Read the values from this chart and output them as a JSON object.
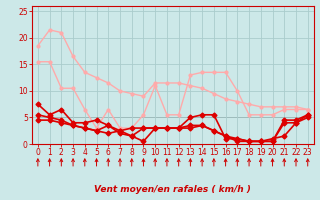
{
  "x": [
    0,
    1,
    2,
    3,
    4,
    5,
    6,
    7,
    8,
    9,
    10,
    11,
    12,
    13,
    14,
    15,
    16,
    17,
    18,
    19,
    20,
    21,
    22,
    23
  ],
  "series": [
    {
      "name": "light_line1",
      "y": [
        18.5,
        21.5,
        21.0,
        16.5,
        13.5,
        12.5,
        11.5,
        10.0,
        9.5,
        9.0,
        11.5,
        11.5,
        11.5,
        11.0,
        10.5,
        9.5,
        8.5,
        8.0,
        7.5,
        7.0,
        7.0,
        7.0,
        7.0,
        6.5
      ],
      "color": "#ffaaaa",
      "lw": 1.0,
      "marker": "o",
      "ms": 2.0,
      "zorder": 2
    },
    {
      "name": "light_line2",
      "y": [
        15.5,
        15.5,
        10.5,
        10.5,
        6.5,
        3.0,
        6.5,
        3.0,
        3.0,
        5.5,
        11.0,
        5.5,
        5.5,
        13.0,
        13.5,
        13.5,
        13.5,
        10.0,
        5.5,
        5.5,
        5.5,
        6.5,
        6.5,
        6.5
      ],
      "color": "#ffaaaa",
      "lw": 1.0,
      "marker": "o",
      "ms": 2.0,
      "zorder": 2
    },
    {
      "name": "red_line1",
      "y": [
        7.5,
        5.5,
        6.5,
        4.0,
        4.0,
        4.5,
        3.5,
        2.5,
        1.5,
        0.5,
        3.0,
        3.0,
        3.0,
        5.0,
        5.5,
        5.5,
        1.0,
        1.0,
        0.5,
        0.5,
        0.5,
        4.5,
        4.5,
        5.5
      ],
      "color": "#dd0000",
      "lw": 1.2,
      "marker": "D",
      "ms": 2.5,
      "zorder": 4
    },
    {
      "name": "red_line2",
      "y": [
        5.5,
        5.0,
        4.5,
        3.5,
        3.0,
        2.5,
        2.0,
        2.5,
        3.0,
        3.0,
        3.0,
        3.0,
        3.0,
        3.5,
        3.5,
        2.5,
        1.5,
        1.0,
        0.5,
        0.5,
        1.0,
        1.5,
        4.0,
        5.0
      ],
      "color": "#dd0000",
      "lw": 1.2,
      "marker": "D",
      "ms": 2.5,
      "zorder": 4
    },
    {
      "name": "red_line3",
      "y": [
        4.5,
        4.5,
        4.0,
        3.5,
        3.0,
        2.5,
        3.5,
        2.0,
        1.5,
        3.0,
        3.0,
        3.0,
        3.0,
        3.0,
        3.5,
        2.5,
        1.5,
        0.5,
        0.5,
        0.5,
        0.5,
        4.0,
        4.0,
        5.5
      ],
      "color": "#dd0000",
      "lw": 1.2,
      "marker": "D",
      "ms": 2.5,
      "zorder": 4
    },
    {
      "name": "mean_line",
      "y": [
        5.0,
        5.0,
        5.0,
        5.0,
        5.0,
        5.0,
        5.0,
        5.0,
        5.0,
        5.0,
        5.0,
        5.0,
        5.0,
        5.0,
        5.0,
        5.0,
        5.0,
        5.0,
        5.0,
        5.0,
        5.0,
        5.0,
        5.0,
        5.0
      ],
      "color": "#555555",
      "lw": 0.6,
      "marker": null,
      "ms": 0,
      "zorder": 1
    }
  ],
  "xlabel": "Vent moyen/en rafales ( km/h )",
  "ylim": [
    0,
    26
  ],
  "yticks": [
    0,
    5,
    10,
    15,
    20,
    25
  ],
  "xlim": [
    -0.5,
    23.5
  ],
  "bg_color": "#cce8e8",
  "grid_color": "#aacccc",
  "axis_color": "#cc0000",
  "label_color": "#cc0000",
  "arrow_color": "#cc0000",
  "tick_fontsize": 5.5,
  "xlabel_fontsize": 6.5
}
